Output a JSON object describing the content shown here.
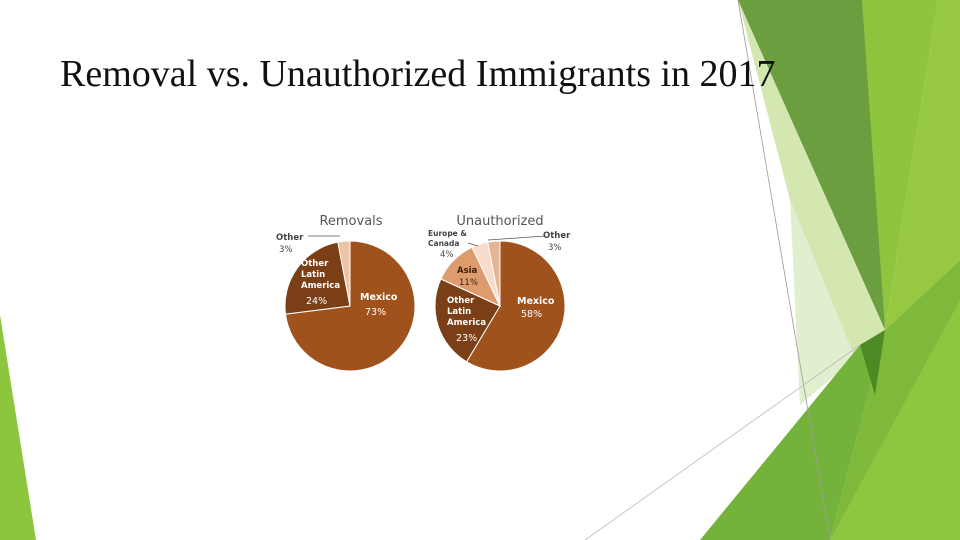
{
  "slide": {
    "title": "Removal vs. Unauthorized Immigrants in 2017",
    "accent_colors": [
      "#8cc63f",
      "#6aa232",
      "#4f8f25",
      "#c5e09a"
    ]
  },
  "chart_data": [
    {
      "type": "pie",
      "title": "Removals",
      "slices": [
        {
          "label": "Mexico",
          "value": 73,
          "display": "73%",
          "color": "#a0521d",
          "label_color": "#ffffff"
        },
        {
          "label": "Other Latin America",
          "value": 24,
          "display": "24%",
          "color": "#7a3f16",
          "label_color": "#ffffff"
        },
        {
          "label": "Other",
          "value": 3,
          "display": "3%",
          "color": "#edc3a6",
          "label_color": "#3a3a3a"
        }
      ]
    },
    {
      "type": "pie",
      "title": "Unauthorized",
      "slices": [
        {
          "label": "Mexico",
          "value": 58,
          "display": "58%",
          "color": "#a0521d",
          "label_color": "#ffffff"
        },
        {
          "label": "Other Latin America",
          "value": 23,
          "display": "23%",
          "color": "#7a3f16",
          "label_color": "#ffffff"
        },
        {
          "label": "Asia",
          "value": 11,
          "display": "11%",
          "color": "#de9b6d",
          "label_color": "#3a2010"
        },
        {
          "label": "Europe & Canada",
          "value": 4,
          "display": "4%",
          "color": "#f7dccb",
          "label_color": "#3a3a3a"
        },
        {
          "label": "Other",
          "value": 3,
          "display": "3%",
          "color": "#e8b593",
          "label_color": "#3a3a3a"
        }
      ]
    }
  ]
}
